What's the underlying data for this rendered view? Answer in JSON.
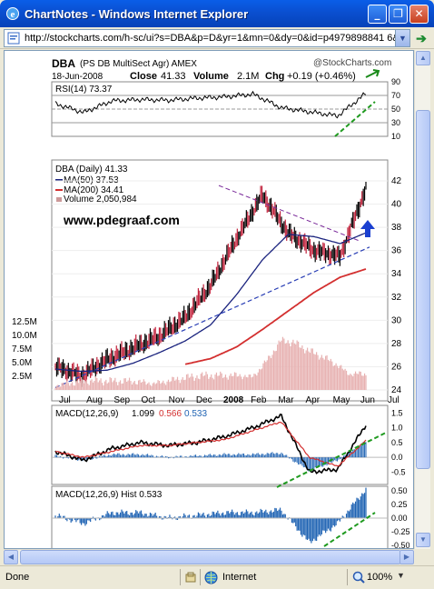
{
  "window": {
    "title": "ChartNotes - Windows Internet Explorer",
    "minimize": "_",
    "restore": "❐",
    "close": "✕"
  },
  "address": {
    "url": "http://stockcharts.com/h-sc/ui?s=DBA&p=D&yr=1&mn=0&dy=0&id=p4979898841 6&r="
  },
  "status": {
    "left": "Done",
    "zone": "Internet",
    "zoom": "100%"
  },
  "header": {
    "symbol": "DBA",
    "name": "(PS DB MultiSect  Agr)  AMEX",
    "copyright": "@StockCharts.com",
    "date": "18-Jun-2008",
    "close_label": "Close",
    "close_val": "41.33",
    "volume_label": "Volume",
    "volume_val": "2.1M",
    "chg_label": "Chg",
    "chg_val": "+0.19 (+0.46%)",
    "chg_color": "#1a8a1a"
  },
  "rsi": {
    "label": "RSI(14) 73.37",
    "ticks": [
      "90",
      "70",
      "50",
      "30",
      "10"
    ]
  },
  "price": {
    "legend_main": "DBA (Daily) 41.33",
    "legend_ma50": "MA(50) 37.53",
    "legend_ma200": "MA(200) 34.41",
    "legend_vol": "Volume 2,050,984",
    "watermark": "www.pdegraaf.com",
    "ticks": [
      "42",
      "40",
      "38",
      "36",
      "34",
      "32",
      "30",
      "28",
      "26",
      "24"
    ],
    "vol_ticks": [
      "12.5M",
      "10.0M",
      "7.5M",
      "5.0M",
      "2.5M"
    ],
    "months": [
      "Jul",
      "Aug",
      "Sep",
      "Oct",
      "Nov",
      "Dec",
      "2008",
      "Feb",
      "Mar",
      "Apr",
      "May",
      "Jun",
      "Jul"
    ]
  },
  "macd": {
    "label_prefix": "MACD(12,26,9)",
    "v1": "1.099",
    "v2": "0.566",
    "v3": "0.533",
    "ticks": [
      "1.5",
      "1.0",
      "0.5",
      "0.0",
      "-0.5"
    ]
  },
  "hist": {
    "label": "MACD(12,26,9) Hist 0.533",
    "ticks": [
      "0.50",
      "0.25",
      "0.00",
      "-0.25",
      "-0.50"
    ]
  },
  "colors": {
    "titlebar": "#0a52d6",
    "ma50": "#1a237e",
    "ma200": "#d32f2f",
    "trend_green": "#1f9a1f",
    "hist_blue": "#1f63b3"
  },
  "chart_data": [
    {
      "type": "line",
      "title": "RSI(14) 73.37",
      "x": [
        "Jul",
        "Aug",
        "Sep",
        "Oct",
        "Nov",
        "Dec",
        "2008",
        "Feb",
        "Mar",
        "Apr",
        "May",
        "Jun"
      ],
      "series": [
        {
          "name": "RSI(14)",
          "values": [
            58,
            45,
            62,
            64,
            63,
            66,
            68,
            72,
            52,
            46,
            40,
            73
          ]
        }
      ],
      "ylim": [
        10,
        90
      ]
    },
    {
      "type": "line",
      "title": "DBA (Daily) 41.33",
      "x": [
        "Jul",
        "Aug",
        "Sep",
        "Oct",
        "Nov",
        "Dec",
        "2008",
        "Feb",
        "Mar",
        "Apr",
        "May",
        "Jun",
        "Jun-18"
      ],
      "series": [
        {
          "name": "DBA (Daily)",
          "values": [
            26.0,
            25.2,
            26.6,
            27.6,
            28.6,
            30.2,
            33.0,
            37.0,
            40.8,
            37.5,
            36.0,
            35.5,
            41.33
          ]
        },
        {
          "name": "MA(50)",
          "values": [
            25.8,
            25.6,
            25.7,
            26.3,
            27.2,
            28.2,
            29.6,
            32.2,
            35.2,
            37.4,
            37.2,
            36.6,
            37.53
          ]
        },
        {
          "name": "MA(200)",
          "values": [
            null,
            null,
            null,
            null,
            null,
            26.2,
            26.7,
            27.7,
            29.2,
            30.8,
            32.4,
            33.7,
            34.41
          ]
        }
      ],
      "ylim": [
        24,
        43.5
      ]
    },
    {
      "type": "bar",
      "title": "Volume 2,050,984",
      "categories": [
        "Jul",
        "Aug",
        "Sep",
        "Oct",
        "Nov",
        "Dec",
        "2008",
        "Feb",
        "Mar",
        "Apr",
        "May",
        "Jun"
      ],
      "values": [
        0.8,
        1.0,
        0.9,
        1.1,
        1.2,
        1.4,
        1.6,
        2.4,
        5.5,
        4.0,
        3.5,
        2.05
      ],
      "ylim": [
        0,
        12.5
      ]
    },
    {
      "type": "line",
      "title": "MACD(12,26,9)",
      "x": [
        "Jul",
        "Aug",
        "Sep",
        "Oct",
        "Nov",
        "Dec",
        "2008",
        "Feb",
        "Mar",
        "Apr",
        "May",
        "Jun"
      ],
      "series": [
        {
          "name": "MACD",
          "values": [
            0.2,
            -0.1,
            0.3,
            0.5,
            0.4,
            0.5,
            0.7,
            1.0,
            1.4,
            -0.5,
            -0.4,
            1.099
          ]
        },
        {
          "name": "Signal",
          "values": [
            0.2,
            0.0,
            0.2,
            0.4,
            0.4,
            0.5,
            0.6,
            0.9,
            1.2,
            0.0,
            -0.3,
            0.566
          ]
        }
      ],
      "ylim": [
        -0.7,
        1.6
      ]
    },
    {
      "type": "bar",
      "title": "MACD(12,26,9) Hist 0.533",
      "categories": [
        "Jul",
        "Aug",
        "Sep",
        "Oct",
        "Nov",
        "Dec",
        "2008",
        "Feb",
        "Mar",
        "Apr",
        "May",
        "Jun"
      ],
      "values": [
        0.05,
        -0.1,
        0.1,
        0.1,
        0.0,
        0.05,
        0.1,
        0.1,
        0.15,
        -0.45,
        -0.1,
        0.533
      ],
      "ylim": [
        -0.55,
        0.55
      ]
    }
  ]
}
